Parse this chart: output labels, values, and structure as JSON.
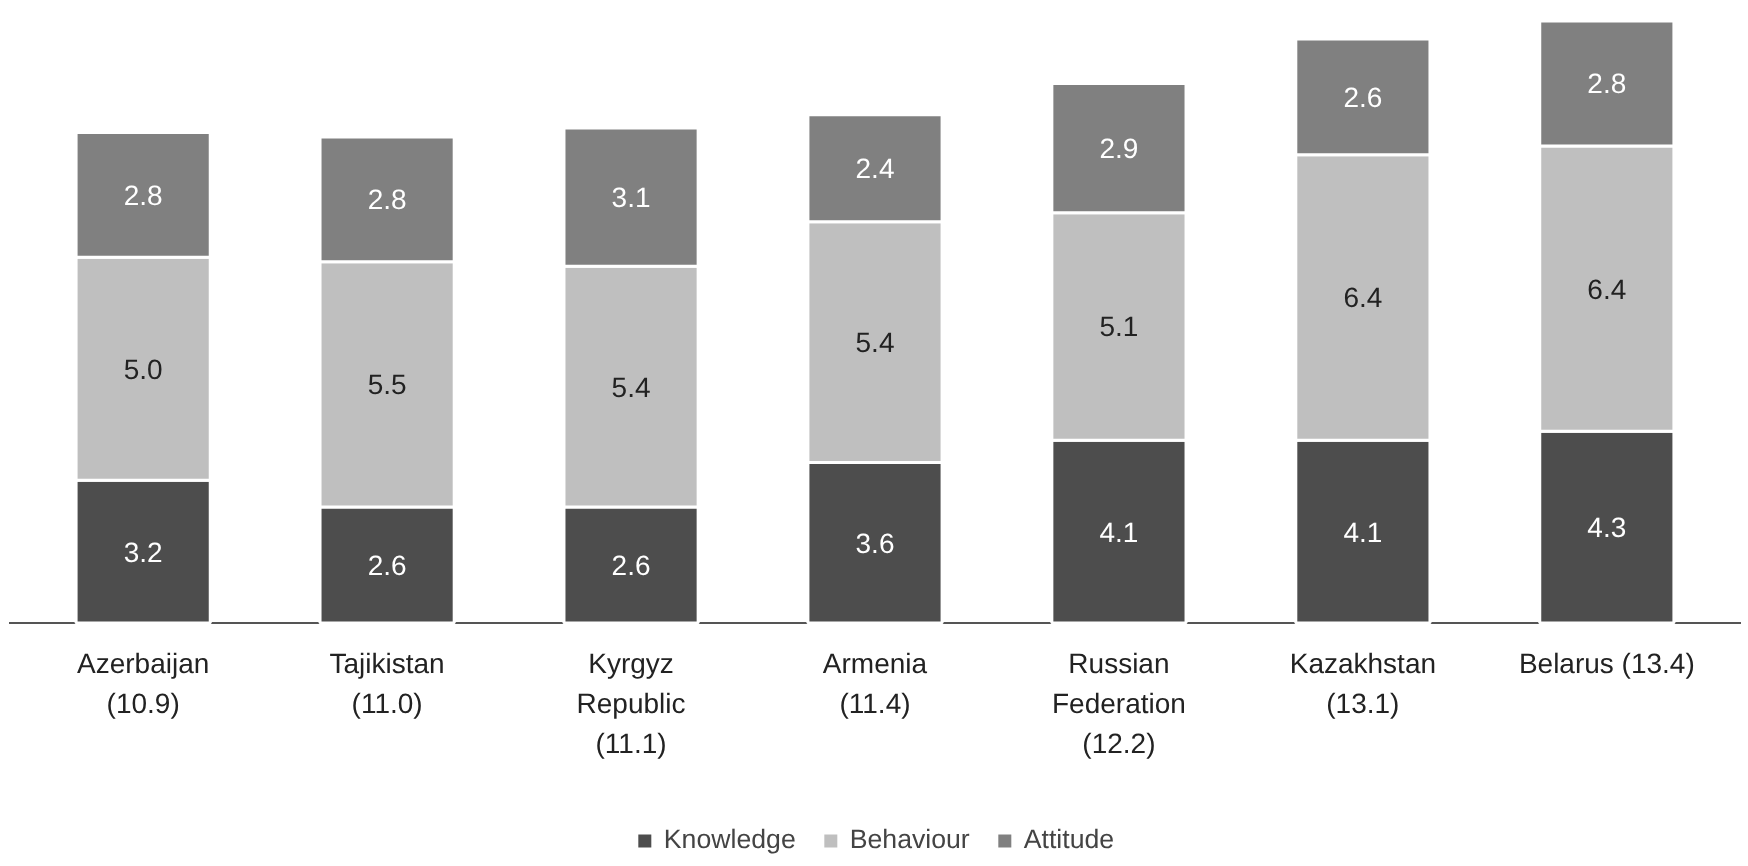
{
  "chart_data": {
    "type": "bar",
    "stacked": true,
    "legend": "bottom",
    "tick_labels": "x",
    "categories": [
      "Azerbaijan\n(10.9)",
      "Tajikistan\n(11.0)",
      "Kyrgyz\nRepublic\n(11.1)",
      "Armenia\n(11.4)",
      "Russian\nFederation\n(12.2)",
      "Kazakhstan\n(13.1)",
      "Belarus (13.4)"
    ],
    "series": [
      {
        "name": "Knowledge",
        "color": "#4d4d4d",
        "values": [
          3.2,
          2.6,
          2.6,
          3.6,
          4.1,
          4.1,
          4.3
        ],
        "value_labels": [
          "3.2",
          "2.6",
          "2.6",
          "3.6",
          "4.1",
          "4.1",
          "4.3"
        ]
      },
      {
        "name": "Behaviour",
        "color": "#bfbfbf",
        "values": [
          5.0,
          5.5,
          5.4,
          5.4,
          5.1,
          6.4,
          6.4
        ],
        "value_labels": [
          "5.0",
          "5.5",
          "5.4",
          "5.4",
          "5.1",
          "6.4",
          "6.4"
        ]
      },
      {
        "name": "Attitude",
        "color": "#808080",
        "values": [
          2.8,
          2.8,
          3.1,
          2.4,
          2.9,
          2.6,
          2.8
        ],
        "value_labels": [
          "2.8",
          "2.8",
          "3.1",
          "2.4",
          "2.9",
          "2.6",
          "2.8"
        ]
      }
    ]
  }
}
